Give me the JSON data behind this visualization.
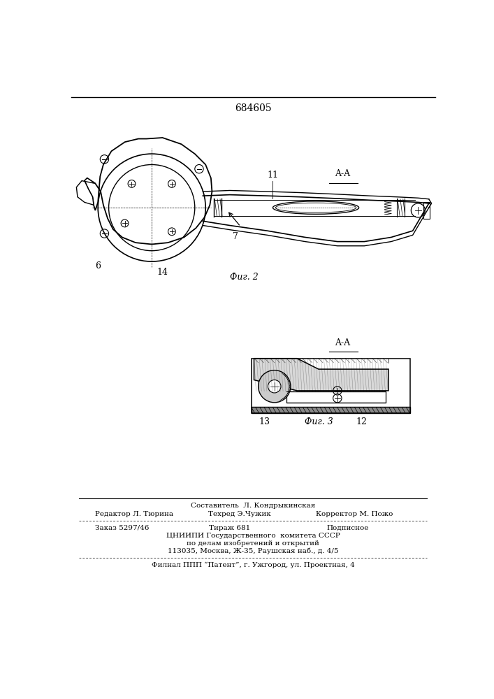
{
  "patent_number": "684605",
  "background_color": "#ffffff",
  "fig2_label": "Фиг. 2",
  "fig3_label": "Фиг. 3",
  "section_label": "A-A",
  "label_6": "6",
  "label_7": "7",
  "label_11": "11",
  "label_14": "14",
  "label_13": "13",
  "label_12": "12",
  "editor_line": "Редактор Л. Тюрина",
  "composer_line": "Составитель  Л. Кондрыкинская",
  "techred_line": "Техред Э.Чужик",
  "corrector_line": "Корректор М. Пожо",
  "order_line": "Заказ 5297/46",
  "tirazh_line": "Тираж 681",
  "podpisnoe_line": "Подписное",
  "tsnipi_line": "ЦНИИПИ Государственного  комитета СССР",
  "podelam_line": "по делам изобретений и открытий",
  "address_line": "113035, Москва, Ж-35, Раушская наб., д. 4/5",
  "filial_line": "Филнал ППП “Патент”, г. Ужгород, ул. Проектная, 4"
}
